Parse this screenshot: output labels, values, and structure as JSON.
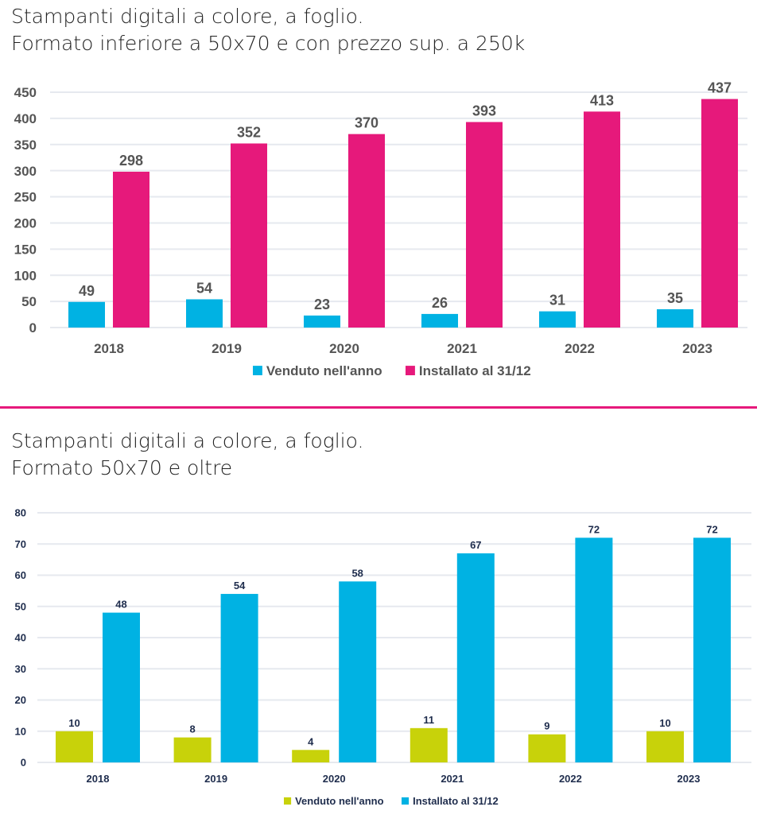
{
  "chart_data": [
    {
      "type": "bar",
      "title_lines": [
        "Stampanti digitali a colore, a foglio.",
        "Formato inferiore a 50x70 e con prezzo sup. a 250k"
      ],
      "categories": [
        "2018",
        "2019",
        "2020",
        "2021",
        "2022",
        "2023"
      ],
      "series": [
        {
          "name": "Venduto nell'anno",
          "color": "#00b2e3",
          "values": [
            49,
            54,
            23,
            26,
            31,
            35
          ]
        },
        {
          "name": "Installato al 31/12",
          "color": "#e6197b",
          "values": [
            298,
            352,
            370,
            393,
            413,
            437
          ]
        }
      ],
      "ylim": [
        0,
        450
      ],
      "yticks": [
        0,
        50,
        100,
        150,
        200,
        250,
        300,
        350,
        400,
        450
      ],
      "grid": true,
      "legend": "bottom",
      "text_color": "#555555"
    },
    {
      "type": "bar",
      "title_lines": [
        "Stampanti digitali a colore, a foglio.",
        "Formato 50x70 e oltre"
      ],
      "categories": [
        "2018",
        "2019",
        "2020",
        "2021",
        "2022",
        "2023"
      ],
      "series": [
        {
          "name": "Venduto nell'anno",
          "color": "#c8d20a",
          "values": [
            10,
            8,
            4,
            11,
            9,
            10
          ]
        },
        {
          "name": "Installato al 31/12",
          "color": "#00b2e3",
          "values": [
            48,
            54,
            58,
            67,
            72,
            72
          ]
        }
      ],
      "ylim": [
        0,
        80
      ],
      "yticks": [
        0,
        10,
        20,
        30,
        40,
        50,
        60,
        70,
        80
      ],
      "grid": true,
      "legend": "bottom",
      "text_color": "#1f2d4d"
    }
  ]
}
